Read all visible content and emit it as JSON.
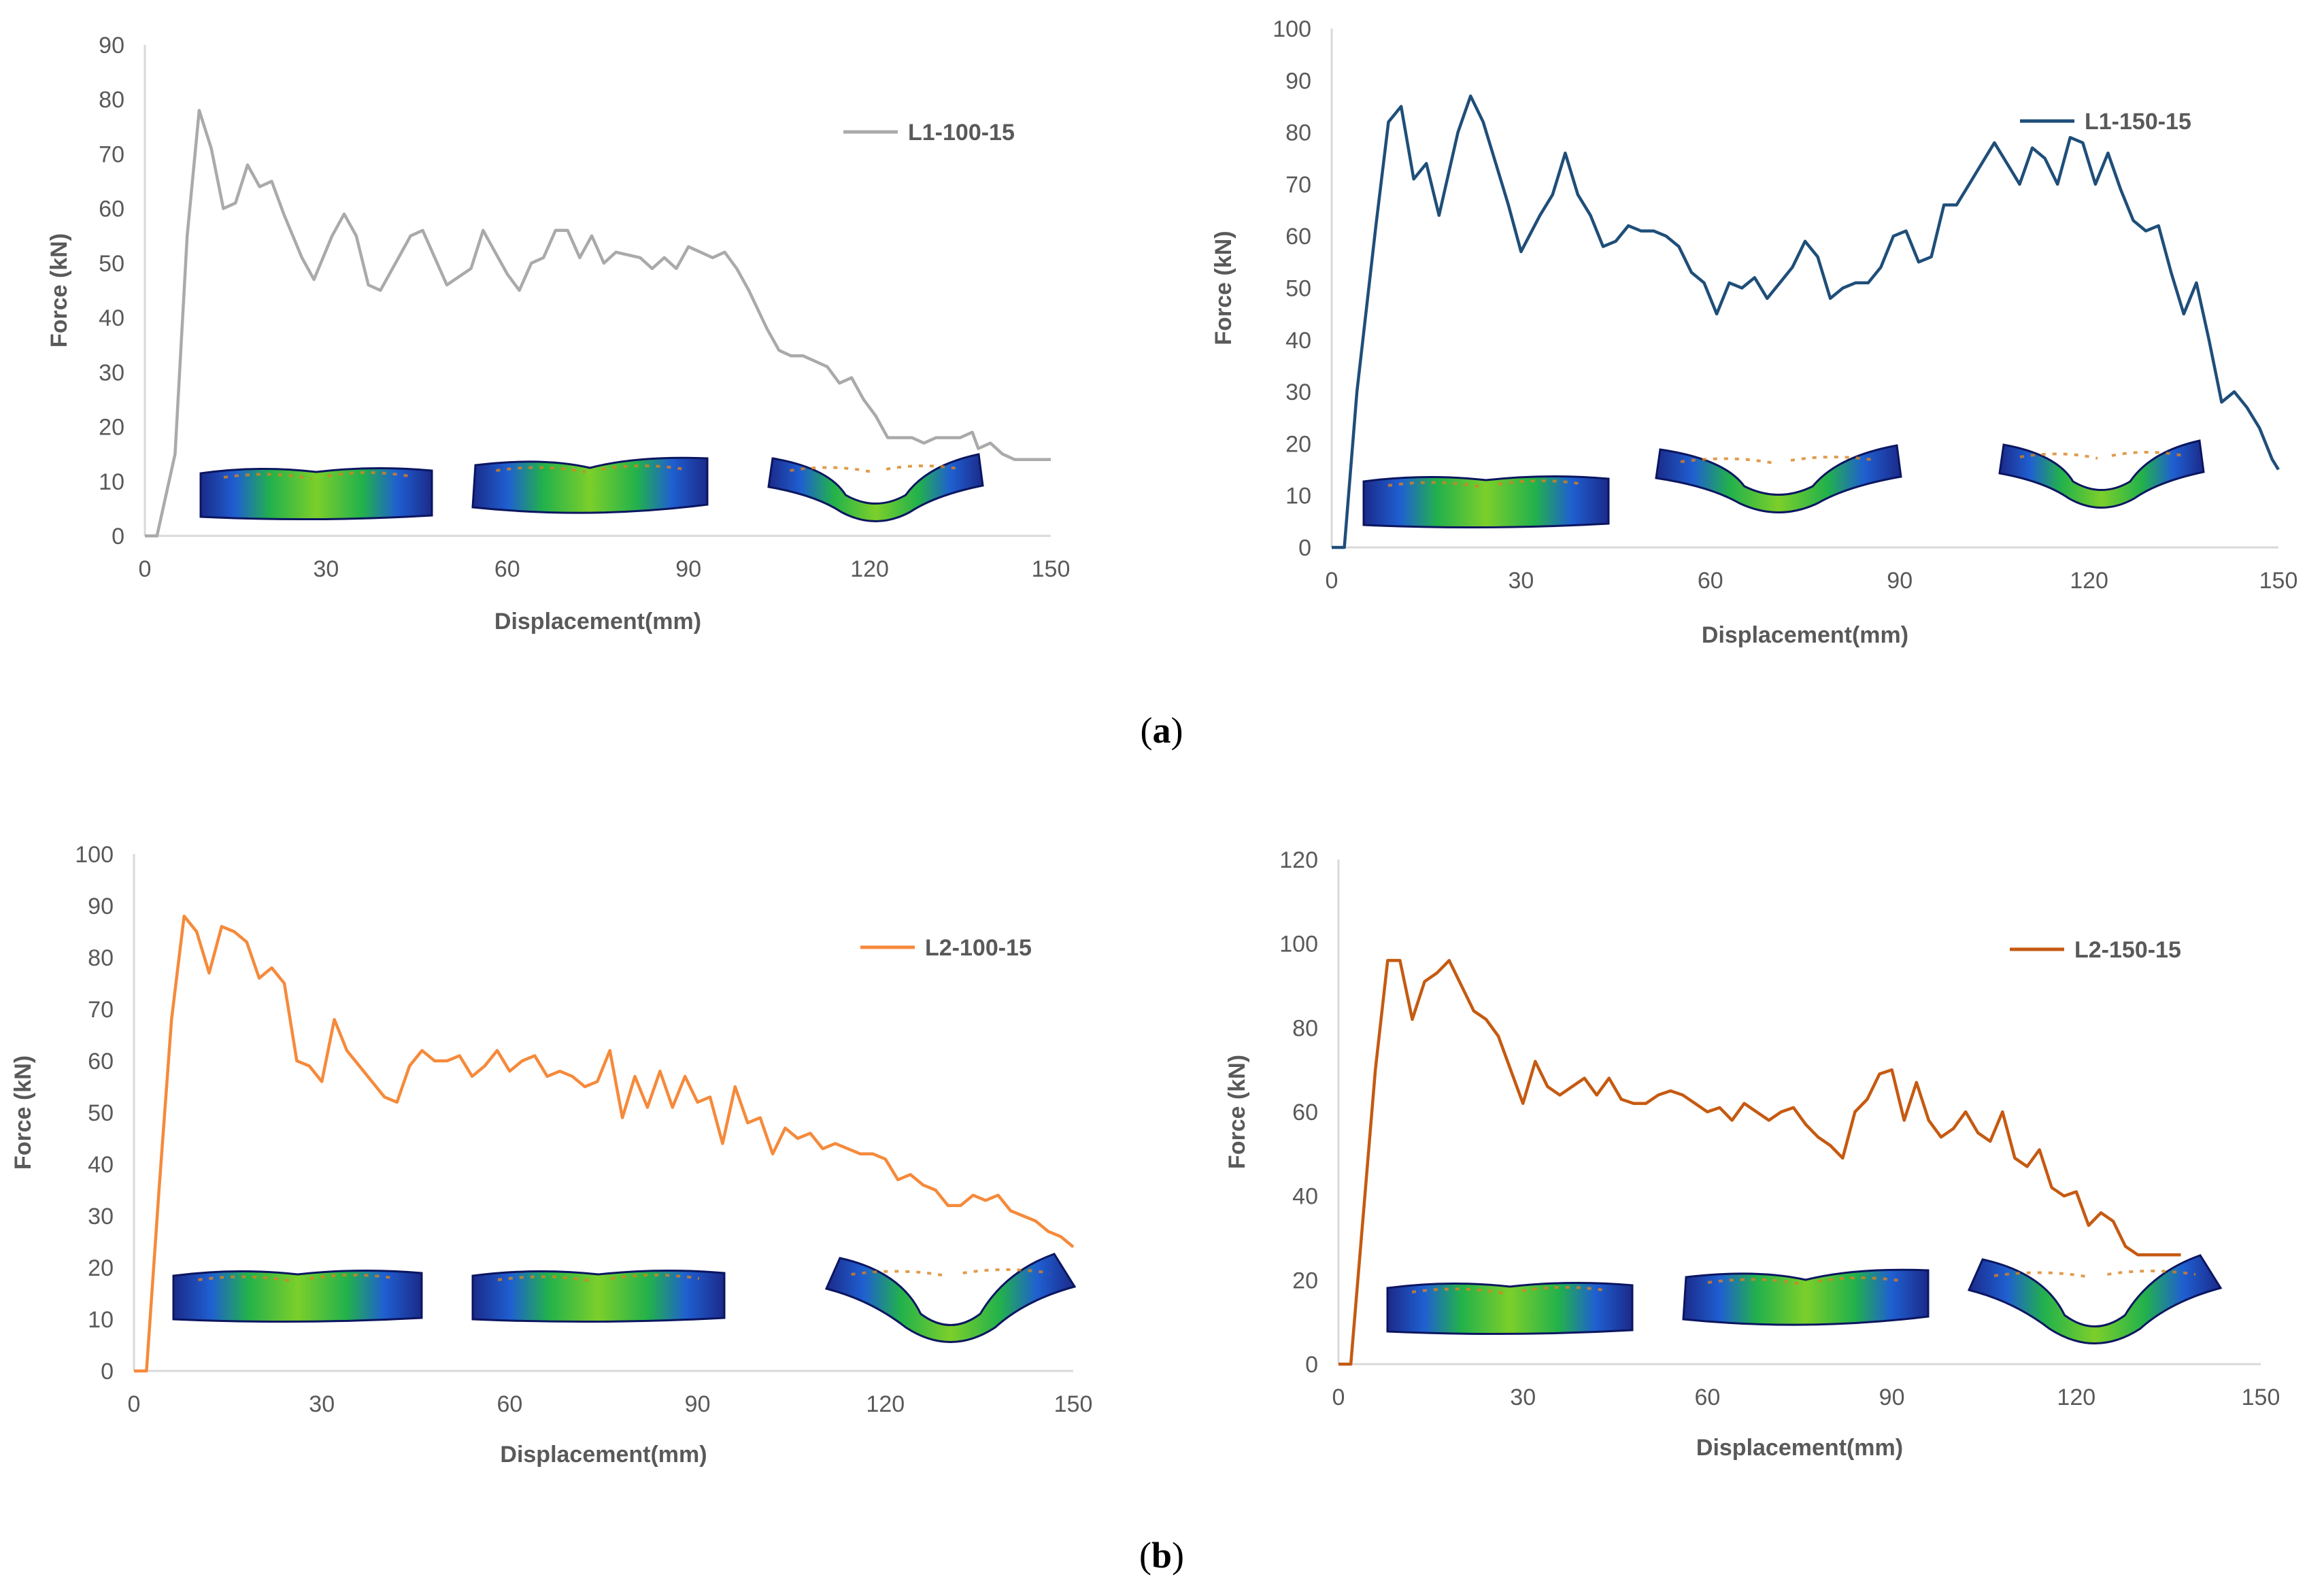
{
  "panel_labels": [
    {
      "open": "(",
      "letter": "a",
      "close": ")"
    },
    {
      "open": "(",
      "letter": "b",
      "close": ")"
    }
  ],
  "colors": {
    "L1-100-15": "#aaaaaa",
    "L1-150-15": "#1f4e79",
    "L2-100-15": "#f58a3b",
    "L2-150-15": "#c55a11",
    "axis": "#d9d9d9",
    "text": "#595959"
  },
  "chart_data": [
    {
      "type": "line",
      "title": "",
      "xlabel": "Displacement(mm)",
      "ylabel": "Force (kN)",
      "xlim": [
        0,
        150
      ],
      "ylim": [
        0,
        90
      ],
      "xticks": [
        0,
        30,
        60,
        90,
        120,
        150
      ],
      "yticks": [
        0,
        10,
        20,
        30,
        40,
        50,
        60,
        70,
        80,
        90
      ],
      "grid": false,
      "legend_position": "top-right",
      "series": [
        {
          "name": "L1-100-15",
          "color": "#aaaaaa",
          "x": [
            0,
            2,
            5,
            7,
            9,
            11,
            13,
            15,
            17,
            19,
            21,
            23,
            26,
            28,
            31,
            33,
            35,
            37,
            39,
            42,
            44,
            46,
            50,
            54,
            56,
            58,
            60,
            62,
            64,
            66,
            68,
            70,
            72,
            74,
            76,
            78,
            82,
            84,
            86,
            88,
            90,
            92,
            94,
            96,
            98,
            100,
            103,
            105,
            107,
            109,
            111,
            113,
            115,
            117,
            119,
            121,
            123,
            125,
            127,
            129,
            131,
            133,
            135,
            137,
            138,
            140,
            142,
            144,
            146,
            148,
            150
          ],
          "y": [
            0,
            0,
            15,
            55,
            78,
            71,
            60,
            61,
            68,
            64,
            65,
            59,
            51,
            47,
            55,
            59,
            55,
            46,
            45,
            51,
            55,
            56,
            46,
            49,
            56,
            52,
            48,
            45,
            50,
            51,
            56,
            56,
            51,
            55,
            50,
            52,
            51,
            49,
            51,
            49,
            53,
            52,
            51,
            52,
            49,
            45,
            38,
            34,
            33,
            33,
            32,
            31,
            28,
            29,
            25,
            22,
            18,
            18,
            18,
            17,
            18,
            18,
            18,
            19,
            16,
            17,
            15,
            14,
            14,
            14,
            14
          ]
        }
      ]
    },
    {
      "type": "line",
      "title": "",
      "xlabel": "Displacement(mm)",
      "ylabel": "Force (kN)",
      "xlim": [
        0,
        150
      ],
      "ylim": [
        0,
        100
      ],
      "xticks": [
        0,
        30,
        60,
        90,
        120,
        150
      ],
      "yticks": [
        0,
        10,
        20,
        30,
        40,
        50,
        60,
        70,
        80,
        90,
        100
      ],
      "grid": false,
      "legend_position": "top-right",
      "series": [
        {
          "name": "L1-150-15",
          "color": "#1f4e79",
          "x": [
            0,
            2,
            4,
            7,
            9,
            11,
            13,
            15,
            17,
            20,
            22,
            24,
            26,
            28,
            30,
            33,
            35,
            37,
            39,
            41,
            43,
            45,
            47,
            49,
            51,
            53,
            55,
            57,
            59,
            61,
            63,
            65,
            67,
            69,
            71,
            73,
            75,
            77,
            79,
            81,
            83,
            85,
            87,
            89,
            91,
            93,
            95,
            97,
            99,
            101,
            103,
            105,
            107,
            109,
            111,
            113,
            115,
            117,
            119,
            121,
            123,
            125,
            127,
            129,
            131,
            133,
            135,
            137,
            139,
            141,
            143,
            145,
            147,
            149,
            150
          ],
          "y": [
            0,
            0,
            30,
            62,
            82,
            85,
            71,
            74,
            64,
            80,
            87,
            82,
            74,
            66,
            57,
            64,
            68,
            76,
            68,
            64,
            58,
            59,
            62,
            61,
            61,
            60,
            58,
            53,
            51,
            45,
            51,
            50,
            52,
            48,
            51,
            54,
            59,
            56,
            48,
            50,
            51,
            51,
            54,
            60,
            61,
            55,
            56,
            66,
            66,
            70,
            74,
            78,
            74,
            70,
            77,
            75,
            70,
            79,
            78,
            70,
            76,
            69,
            63,
            61,
            62,
            53,
            45,
            51,
            40,
            28,
            30,
            27,
            23,
            17,
            15
          ]
        }
      ]
    },
    {
      "type": "line",
      "title": "",
      "xlabel": "Displacement(mm)",
      "ylabel": "Force (kN)",
      "xlim": [
        0,
        150
      ],
      "ylim": [
        0,
        100
      ],
      "xticks": [
        0,
        30,
        60,
        90,
        120,
        150
      ],
      "yticks": [
        0,
        10,
        20,
        30,
        40,
        50,
        60,
        70,
        80,
        90,
        100
      ],
      "grid": false,
      "legend_position": "top-right",
      "series": [
        {
          "name": "L2-100-15",
          "color": "#f58a3b",
          "x": [
            0,
            2,
            4,
            6,
            8,
            10,
            12,
            14,
            16,
            18,
            20,
            22,
            24,
            26,
            28,
            30,
            32,
            34,
            36,
            38,
            40,
            42,
            44,
            46,
            48,
            50,
            52,
            54,
            56,
            58,
            60,
            62,
            64,
            66,
            68,
            70,
            72,
            74,
            76,
            78,
            80,
            82,
            84,
            86,
            88,
            90,
            92,
            94,
            96,
            98,
            100,
            102,
            104,
            106,
            108,
            110,
            112,
            114,
            116,
            118,
            120,
            122,
            124,
            126,
            128,
            130,
            132,
            134,
            136,
            138,
            140,
            142,
            144,
            146,
            148,
            150
          ],
          "y": [
            0,
            0,
            35,
            68,
            88,
            85,
            77,
            86,
            85,
            83,
            76,
            78,
            75,
            60,
            59,
            56,
            68,
            62,
            59,
            56,
            53,
            52,
            59,
            62,
            60,
            60,
            61,
            57,
            59,
            62,
            58,
            60,
            61,
            57,
            58,
            57,
            55,
            56,
            62,
            49,
            57,
            51,
            58,
            51,
            57,
            52,
            53,
            44,
            55,
            48,
            49,
            42,
            47,
            45,
            46,
            43,
            44,
            43,
            42,
            42,
            41,
            37,
            38,
            36,
            35,
            32,
            32,
            34,
            33,
            34,
            31,
            30,
            29,
            27,
            26,
            24
          ]
        }
      ]
    },
    {
      "type": "line",
      "title": "",
      "xlabel": "Displacement(mm)",
      "ylabel": "Force (kN)",
      "xlim": [
        0,
        150
      ],
      "ylim": [
        0,
        120
      ],
      "xticks": [
        0,
        30,
        60,
        90,
        120,
        150
      ],
      "yticks": [
        0,
        20,
        40,
        60,
        80,
        100,
        120
      ],
      "grid": false,
      "legend_position": "top-right",
      "series": [
        {
          "name": "L2-150-15",
          "color": "#c55a11",
          "x": [
            0,
            2,
            4,
            6,
            8,
            10,
            12,
            14,
            16,
            18,
            20,
            22,
            24,
            26,
            28,
            30,
            32,
            34,
            36,
            38,
            40,
            42,
            44,
            46,
            48,
            50,
            52,
            54,
            56,
            58,
            60,
            62,
            64,
            66,
            68,
            70,
            72,
            74,
            76,
            78,
            80,
            82,
            84,
            86,
            88,
            90,
            92,
            94,
            96,
            98,
            100,
            102,
            104,
            106,
            108,
            110,
            112,
            114,
            116,
            118,
            120,
            122,
            124,
            126,
            128,
            130,
            132,
            134,
            136,
            137
          ],
          "y": [
            0,
            0,
            35,
            70,
            96,
            96,
            82,
            91,
            93,
            96,
            90,
            84,
            82,
            78,
            70,
            62,
            72,
            66,
            64,
            66,
            68,
            64,
            68,
            63,
            62,
            62,
            64,
            65,
            64,
            62,
            60,
            61,
            58,
            62,
            60,
            58,
            60,
            61,
            57,
            54,
            52,
            49,
            60,
            63,
            69,
            70,
            58,
            67,
            58,
            54,
            56,
            60,
            55,
            53,
            60,
            49,
            47,
            51,
            42,
            40,
            41,
            33,
            36,
            34,
            28,
            26,
            26,
            26,
            26,
            26
          ]
        }
      ]
    }
  ]
}
